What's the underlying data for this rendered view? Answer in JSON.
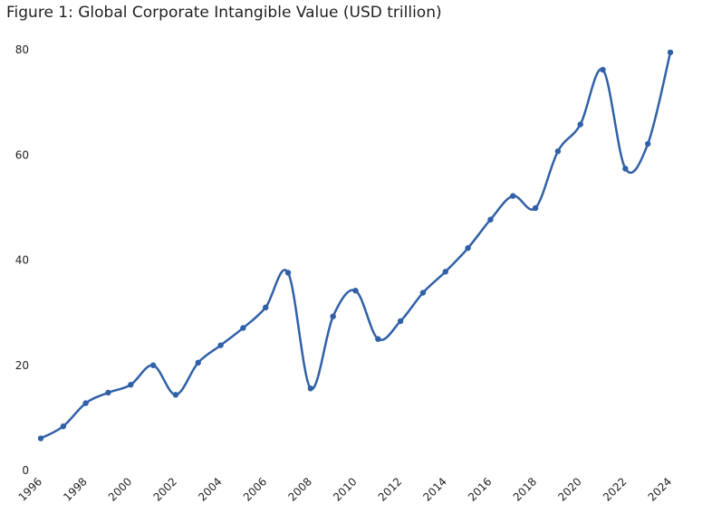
{
  "chart_data": {
    "type": "line",
    "title": "Figure 1: Global Corporate Intangible Value (USD trillion)",
    "xlabel": "",
    "ylabel": "",
    "ylim": [
      0,
      80
    ],
    "yticks": [
      "0",
      "20",
      "40",
      "60",
      "80"
    ],
    "xtick_labels": [
      "1996",
      "1998",
      "2000",
      "2002",
      "2004",
      "2006",
      "2008",
      "2010",
      "2012",
      "2014",
      "2016",
      "2018",
      "2020",
      "2022",
      "2024"
    ],
    "grid": false,
    "series": [
      {
        "name": "Global Corporate Intangible Value",
        "color": "#3060a8",
        "x": [
          1996,
          1997,
          1998,
          1999,
          2000,
          2001,
          2002,
          2003,
          2004,
          2005,
          2006,
          2007,
          2008,
          2009,
          2010,
          2011,
          2012,
          2013,
          2014,
          2015,
          2016,
          2017,
          2018,
          2019,
          2020,
          2021,
          2022,
          2023,
          2024
        ],
        "values": [
          6.1,
          8.4,
          12.8,
          14.8,
          16.3,
          20.0,
          14.4,
          20.5,
          23.8,
          27.1,
          31.0,
          37.6,
          15.6,
          29.3,
          34.2,
          25.0,
          28.4,
          33.8,
          37.8,
          42.3,
          47.7,
          52.2,
          49.9,
          60.7,
          65.8,
          76.2,
          57.4,
          62.1,
          79.5
        ]
      }
    ]
  }
}
